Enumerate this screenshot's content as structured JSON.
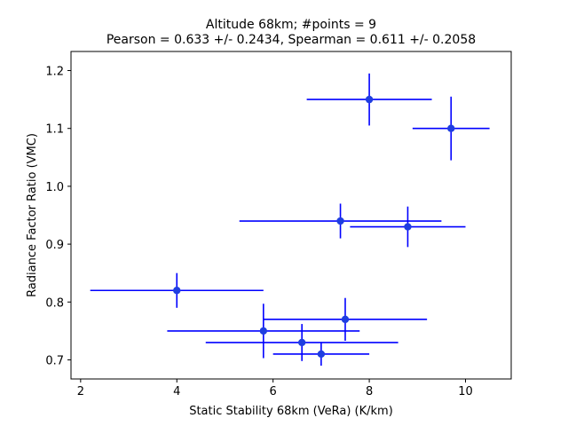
{
  "chart_data": {
    "type": "scatter",
    "title_line1": "Altitude 68km;  #points =  9",
    "title_line2": "Pearson =  0.633 +/-  0.2434, Spearman =  0.611 +/-  0.2058",
    "xlabel": "Static Stability 68km (VeRa) (K/km)",
    "ylabel": "Radiance Factor Ratio (VMC)",
    "xlim": [
      1.8,
      10.95
    ],
    "ylim": [
      0.667,
      1.233
    ],
    "xticks": [
      2,
      4,
      6,
      8,
      10
    ],
    "xtick_labels": [
      "2",
      "4",
      "6",
      "8",
      "10"
    ],
    "yticks": [
      0.7,
      0.8,
      0.9,
      1.0,
      1.1,
      1.2
    ],
    "ytick_labels": [
      "0.7",
      "0.8",
      "0.9",
      "1.0",
      "1.1",
      "1.2"
    ],
    "grid": false,
    "color": "#0000ff",
    "marker_color": "#1f3ee0",
    "points": [
      {
        "x": 8.0,
        "y": 1.15,
        "xerr": [
          1.3,
          1.3
        ],
        "yerr": [
          0.045,
          0.045
        ]
      },
      {
        "x": 9.7,
        "y": 1.1,
        "xerr": [
          0.8,
          0.8
        ],
        "yerr": [
          0.055,
          0.055
        ]
      },
      {
        "x": 7.4,
        "y": 0.94,
        "xerr": [
          2.1,
          2.1
        ],
        "yerr": [
          0.03,
          0.03
        ]
      },
      {
        "x": 8.8,
        "y": 0.93,
        "xerr": [
          1.2,
          1.2
        ],
        "yerr": [
          0.035,
          0.035
        ]
      },
      {
        "x": 4.0,
        "y": 0.82,
        "xerr": [
          1.8,
          1.8
        ],
        "yerr": [
          0.03,
          0.03
        ]
      },
      {
        "x": 7.5,
        "y": 0.77,
        "xerr": [
          1.7,
          1.7
        ],
        "yerr": [
          0.037,
          0.037
        ]
      },
      {
        "x": 5.8,
        "y": 0.75,
        "xerr": [
          2.0,
          2.0
        ],
        "yerr": [
          0.047,
          0.047
        ]
      },
      {
        "x": 6.6,
        "y": 0.73,
        "xerr": [
          2.0,
          2.0
        ],
        "yerr": [
          0.032,
          0.032
        ]
      },
      {
        "x": 7.0,
        "y": 0.71,
        "xerr": [
          1.0,
          1.0
        ],
        "yerr": [
          0.02,
          0.02
        ]
      }
    ]
  }
}
